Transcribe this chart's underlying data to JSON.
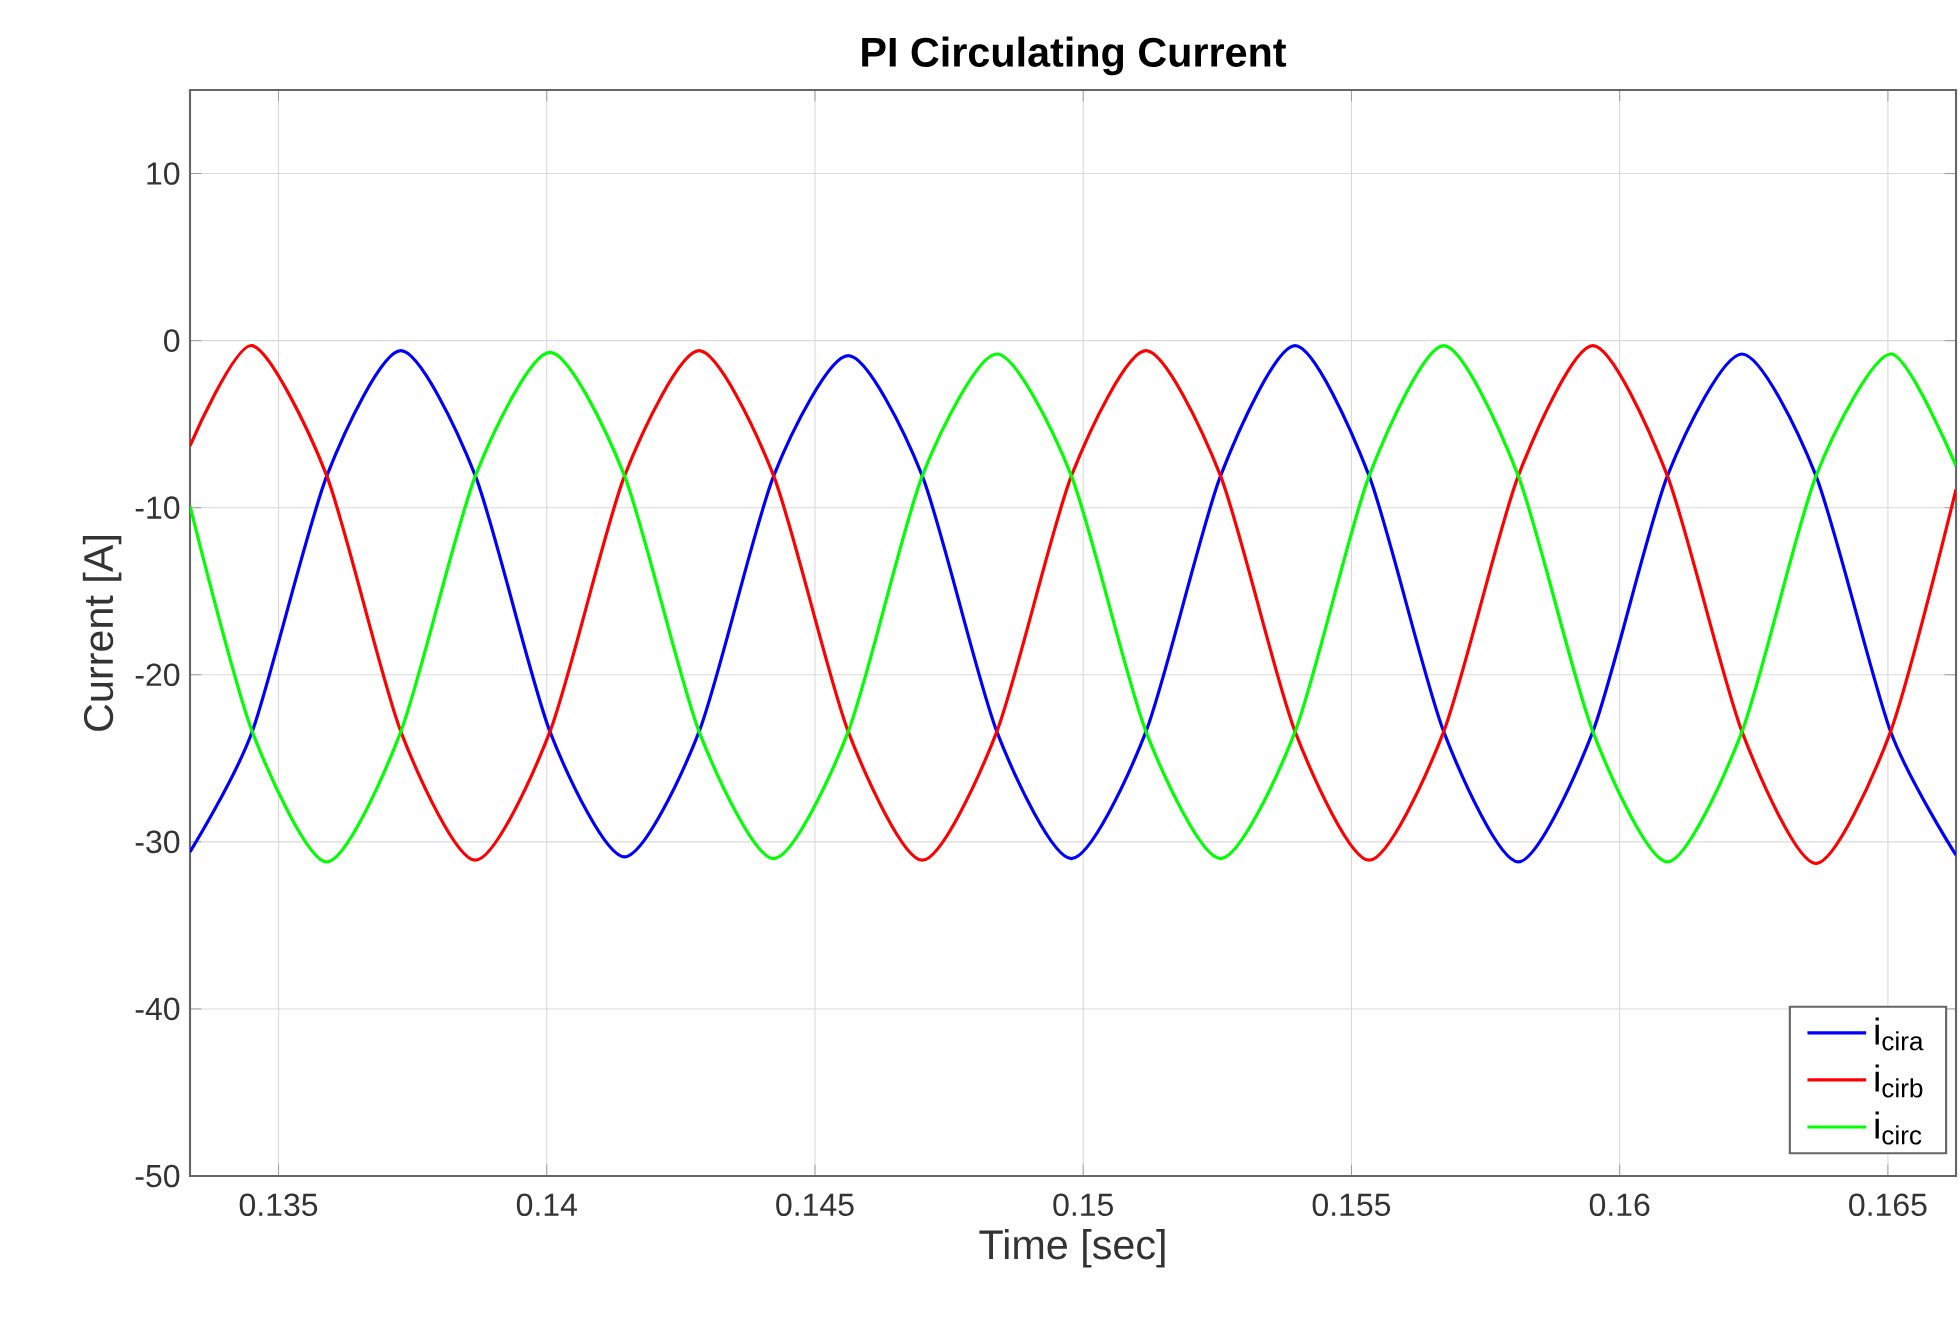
{
  "chart_data": {
    "type": "line",
    "title": "PI Circulating Current",
    "xlabel": "Time [sec]",
    "ylabel": "Current [A]",
    "x": [
      0.13335,
      0.13451,
      0.1359,
      0.13728,
      0.13867,
      0.14006,
      0.14145,
      0.14284,
      0.14423,
      0.14562,
      0.147,
      0.14839,
      0.14978,
      0.15117,
      0.15256,
      0.15395,
      0.15533,
      0.15672,
      0.15811,
      0.1595,
      0.16089,
      0.16228,
      0.16366,
      0.16505,
      0.16627
    ],
    "series": [
      {
        "name": "i$_{cira}$",
        "color": "#0000ff",
        "values": [
          -30.6,
          -23.4,
          -8.1,
          -0.6,
          -8.1,
          -23.4,
          -30.9,
          -23.4,
          -8.1,
          -0.9,
          -8.1,
          -23.4,
          -31.0,
          -23.4,
          -8.1,
          -0.3,
          -8.1,
          -23.4,
          -31.2,
          -23.4,
          -8.1,
          -0.8,
          -8.1,
          -23.4,
          -30.8
        ]
      },
      {
        "name": "i$_{cirb}$",
        "color": "#ff0000",
        "values": [
          -6.3,
          -0.3,
          -8.1,
          -23.4,
          -31.1,
          -23.4,
          -8.1,
          -0.6,
          -8.1,
          -23.4,
          -31.1,
          -23.4,
          -8.1,
          -0.6,
          -8.1,
          -23.4,
          -31.1,
          -23.4,
          -8.1,
          -0.3,
          -8.1,
          -23.4,
          -31.3,
          -23.4,
          -8.9
        ]
      },
      {
        "name": "i$_{circ}$",
        "color": "#00ff00",
        "values": [
          -9.9,
          -23.4,
          -31.2,
          -23.4,
          -8.1,
          -0.7,
          -8.1,
          -23.4,
          -31.0,
          -23.4,
          -8.1,
          -0.8,
          -8.1,
          -23.4,
          -31.0,
          -23.4,
          -8.1,
          -0.3,
          -8.1,
          -23.4,
          -31.2,
          -23.4,
          -8.1,
          -0.8,
          -7.5
        ]
      }
    ],
    "xlim": [
      0.13335,
      0.16627
    ],
    "ylim": [
      -50,
      15
    ],
    "xticks": [
      0.135,
      0.14,
      0.145,
      0.15,
      0.155,
      0.16,
      0.165
    ],
    "yticks": [
      -50,
      -40,
      -30,
      -20,
      -10,
      0,
      10
    ],
    "grid": true,
    "legend": "bottom right"
  }
}
